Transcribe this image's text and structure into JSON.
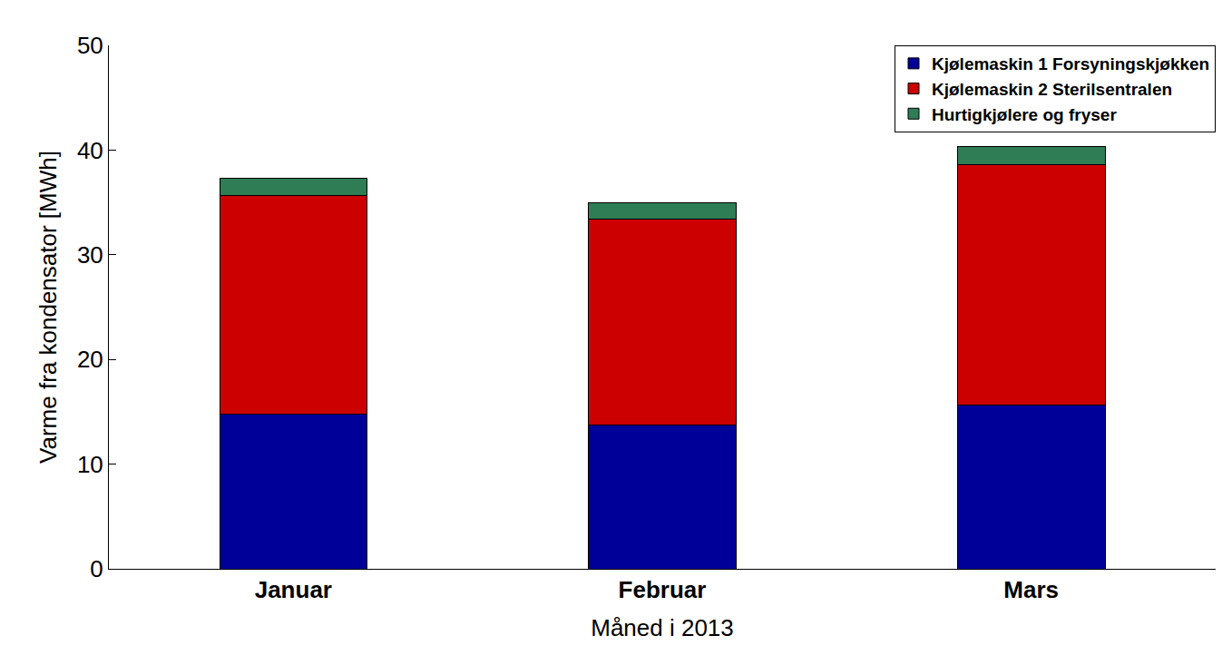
{
  "chart_data": {
    "type": "bar",
    "stacked": true,
    "x_label": "Måned i 2013",
    "y_label": "Varme fra kondensator [MWh]",
    "categories": [
      "Januar",
      "Februar",
      "Mars"
    ],
    "series": [
      {
        "name": "Kjølemaskin 1 Forsyningskjøkken",
        "color": "#000099",
        "values": [
          14.8,
          13.7,
          15.6
        ]
      },
      {
        "name": "Kjølemaskin 2 Sterilsentralen",
        "color": "#cc0000",
        "values": [
          20.9,
          19.7,
          23.0
        ]
      },
      {
        "name": "Hurtigkjølere og fryser",
        "color": "#2e7d55",
        "values": [
          1.6,
          1.6,
          1.7
        ]
      }
    ],
    "ylim": [
      0,
      50
    ],
    "yticks": [
      0,
      10,
      20,
      30,
      40,
      50
    ],
    "grid": false,
    "legend": "upper right"
  }
}
